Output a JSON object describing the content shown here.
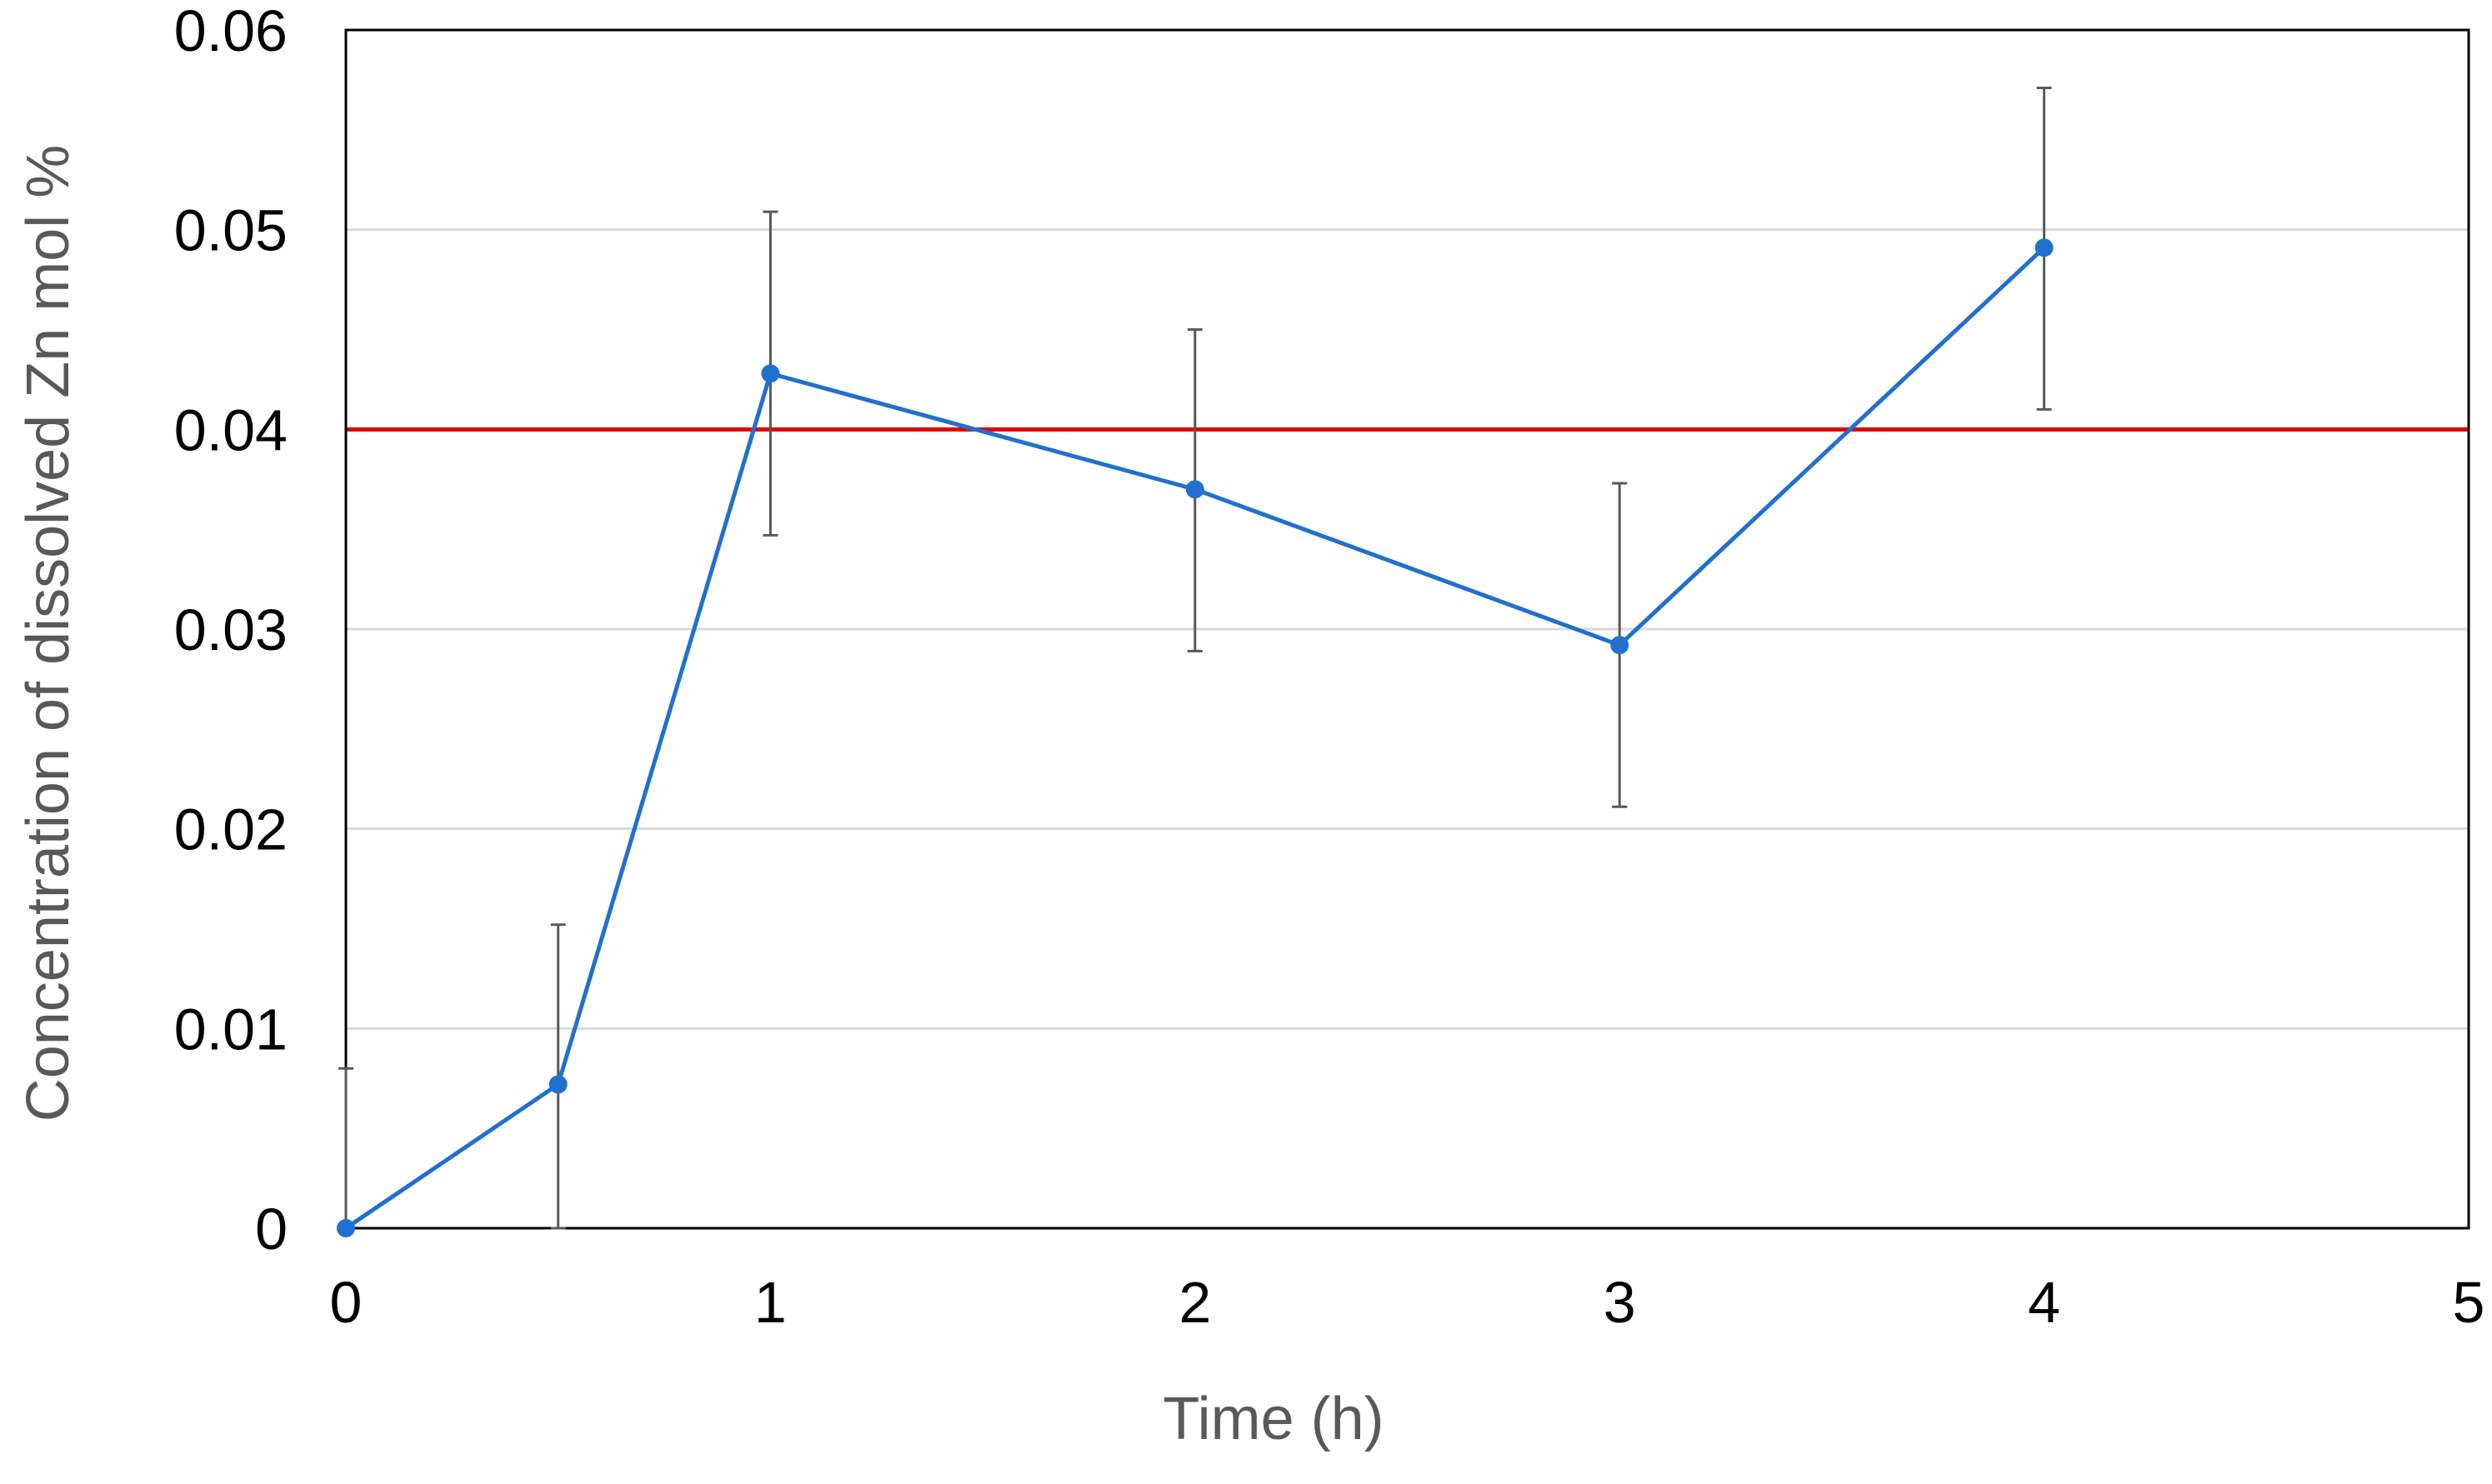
{
  "chart_data": {
    "type": "line",
    "title": "",
    "xlabel": "Time (h)",
    "ylabel": "Concentration of dissolved Zn mol %",
    "xlim": [
      0,
      5
    ],
    "ylim": [
      0,
      0.06
    ],
    "x_ticks": [
      "0",
      "1",
      "2",
      "3",
      "4",
      "5"
    ],
    "y_ticks": [
      "0",
      "0.01",
      "0.02",
      "0.03",
      "0.04",
      "0.05",
      "0.06"
    ],
    "grid": "horizontal",
    "legend": "none",
    "series": [
      {
        "x": [
          0,
          0.5,
          1,
          2,
          3,
          4
        ],
        "y": [
          0,
          0.0072,
          0.0428,
          0.037,
          0.0292,
          0.0491
        ],
        "error_upper": [
          0.008,
          0.0152,
          0.0509,
          0.045,
          0.0373,
          0.0571
        ],
        "error_lower": [
          0,
          0,
          0.0347,
          0.0289,
          0.0211,
          0.041
        ],
        "color": "#2170CF"
      }
    ],
    "reference_lines": [
      {
        "y": 0.04,
        "color": "#E00000"
      }
    ],
    "colors": {
      "grid": "#D9D9D9",
      "frame": "#000000",
      "error_bar": "#595959"
    }
  }
}
